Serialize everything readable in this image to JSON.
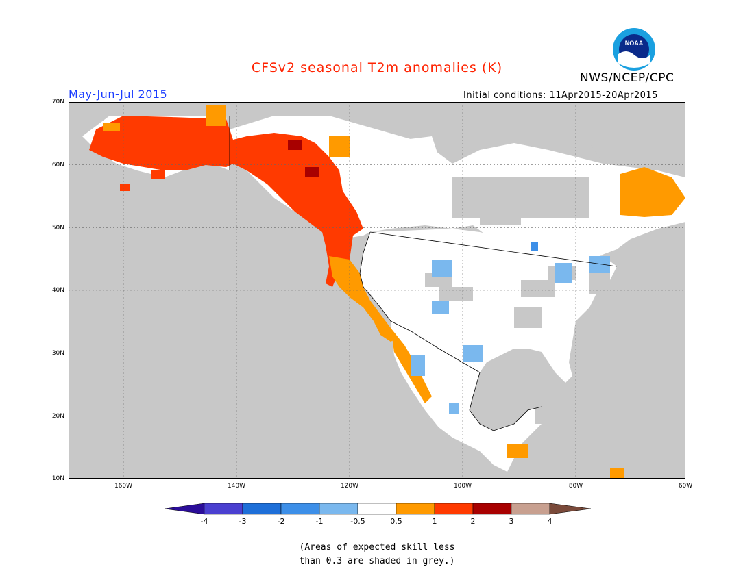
{
  "title": "CFSv2 seasonal T2m anomalies (K)",
  "organization": "NWS/NCEP/CPC",
  "logo_text": "NOAA",
  "period": "May-Jun-Jul 2015",
  "initial_conditions": "Initial conditions: 11Apr2015-20Apr2015",
  "lat_labels": [
    "70N",
    "60N",
    "50N",
    "40N",
    "30N",
    "20N",
    "10N"
  ],
  "lon_labels": [
    "160W",
    "140W",
    "120W",
    "100W",
    "80W",
    "60W"
  ],
  "colorbar": {
    "labels": [
      "-4",
      "-3",
      "-2",
      "-1",
      "-0.5",
      "0.5",
      "1",
      "2",
      "3",
      "4"
    ],
    "colors": [
      "#2b0d99",
      "#4a3fd0",
      "#1e6fd8",
      "#3d8fe8",
      "#7ab8ee",
      "#ffffff",
      "#ff9a00",
      "#ff3a00",
      "#a80000",
      "#c8a090",
      "#7a4a3a"
    ]
  },
  "note_line1": "(Areas of expected skill less",
  "note_line2": "than 0.3 are shaded in grey.)",
  "colors": {
    "ocean_grey": "#c8c8c8",
    "land_white": "#ffffff",
    "title_red": "#ff2200",
    "period_blue": "#1a3cff"
  }
}
